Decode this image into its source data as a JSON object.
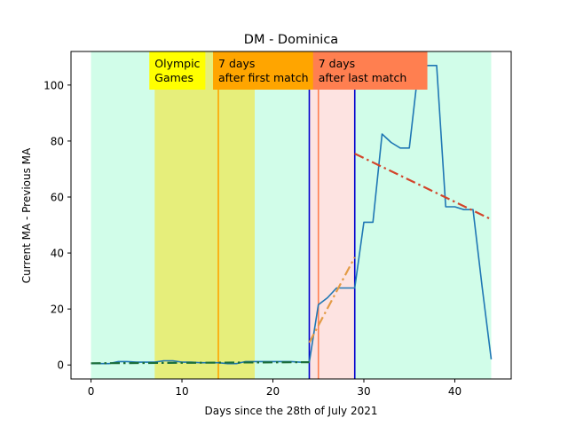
{
  "chart_data": {
    "type": "line",
    "title": "DM - Dominica",
    "xlabel": "Days since the 28th of July 2021",
    "ylabel": "Current MA - Previous MA",
    "xlim": [
      -2.2,
      46.2
    ],
    "ylim": [
      -5,
      112
    ],
    "x_ticks": [
      0,
      10,
      20,
      30,
      40
    ],
    "y_ticks": [
      0,
      20,
      40,
      60,
      80,
      100
    ],
    "grid": false,
    "regions": [
      {
        "x0": 0,
        "x1": 44,
        "color": "#d1fde9"
      },
      {
        "x0": 7,
        "x1": 18,
        "color": "#e6ee7b"
      },
      {
        "x0": 24,
        "x1": 29,
        "color": "#fde3e1"
      }
    ],
    "vlines": [
      {
        "x": 14,
        "color": "#ffa500"
      },
      {
        "x": 25,
        "color": "#ff7f50"
      },
      {
        "x": 24,
        "color": "#0000cc"
      },
      {
        "x": 29,
        "color": "#0000cc"
      }
    ],
    "annotations": [
      {
        "x": 7,
        "lines": [
          "Olympic",
          "Games"
        ],
        "bg": "#ffff00"
      },
      {
        "x": 14,
        "lines": [
          "7 days",
          "after first match"
        ],
        "bg": "#ffa500"
      },
      {
        "x": 25,
        "lines": [
          "7 days",
          "after last match"
        ],
        "bg": "#ff7f50"
      }
    ],
    "series": [
      {
        "color": "#1f77b4",
        "style": "solid",
        "x": [
          0,
          1,
          2,
          3,
          4,
          5,
          6,
          7,
          8,
          9,
          10,
          11,
          12,
          13,
          14,
          15,
          16,
          17,
          18,
          19,
          20,
          21,
          22,
          23,
          24,
          25,
          26,
          27,
          28,
          29,
          30,
          31,
          32,
          33,
          34,
          35,
          36,
          37,
          38,
          39,
          40,
          41,
          42,
          43,
          44
        ],
        "y": [
          0.5,
          0.5,
          0.5,
          1.2,
          1.2,
          1.0,
          1.0,
          1.0,
          1.5,
          1.5,
          1.0,
          1.0,
          0.8,
          0.8,
          0.8,
          0.5,
          0.5,
          1.2,
          1.2,
          1.2,
          1.2,
          1.2,
          1.2,
          1.0,
          1.0,
          21.5,
          24,
          27.5,
          27.5,
          27.5,
          51,
          51,
          82.5,
          79.5,
          77.5,
          77.5,
          106,
          107,
          107,
          56.5,
          56.5,
          55.5,
          55.5,
          28,
          2
        ]
      },
      {
        "color": "#1b6e3a",
        "style": "dashdot",
        "x": [
          0,
          24
        ],
        "y": [
          0.6,
          1.0
        ]
      },
      {
        "color": "#e39b45",
        "style": "dashdot",
        "x": [
          24,
          29
        ],
        "y": [
          8,
          38.5
        ]
      },
      {
        "color": "#d2452b",
        "style": "dashdot",
        "x": [
          29,
          44
        ],
        "y": [
          75.5,
          52
        ]
      }
    ]
  }
}
